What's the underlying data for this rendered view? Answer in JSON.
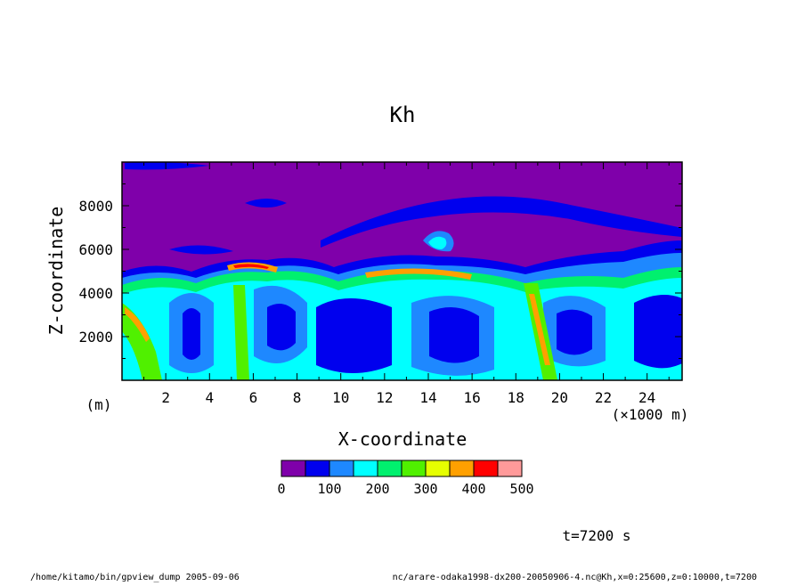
{
  "chart_data": {
    "type": "heatmap",
    "title": "Kh",
    "xlabel": "X-coordinate",
    "ylabel": "Z-coordinate",
    "x_unit_label": "(m)",
    "x_scale_label": "(×1000 m)",
    "xlim": [
      0,
      25600
    ],
    "ylim": [
      0,
      10000
    ],
    "x_ticks": [
      "2",
      "4",
      "6",
      "8",
      "10",
      "12",
      "14",
      "16",
      "18",
      "20",
      "22",
      "24"
    ],
    "x_tick_values": [
      2,
      4,
      6,
      8,
      10,
      12,
      14,
      16,
      18,
      20,
      22,
      24
    ],
    "y_ticks": [
      "2000",
      "4000",
      "6000",
      "8000"
    ],
    "y_tick_values": [
      2000,
      4000,
      6000,
      8000
    ],
    "colorbar": {
      "levels": [
        0,
        50,
        100,
        150,
        200,
        250,
        300,
        350,
        400,
        450,
        500
      ],
      "labels": [
        "0",
        "100",
        "200",
        "300",
        "400",
        "500"
      ],
      "label_values": [
        0,
        100,
        200,
        300,
        400,
        500
      ],
      "colors": [
        "#7f00aa",
        "#0000ee",
        "#1e88ff",
        "#00ffff",
        "#00f06e",
        "#50f000",
        "#e6ff00",
        "#ffa000",
        "#ff0000",
        "#ff9a9a"
      ]
    }
  },
  "annotations": {
    "time": "t=7200 s",
    "footer_left": "/home/kitamo/bin/gpview_dump  2005-09-06",
    "footer_right": "nc/arare-odaka1998-dx200-20050906-4.nc@Kh,x=0:25600,z=0:10000,t=7200"
  }
}
